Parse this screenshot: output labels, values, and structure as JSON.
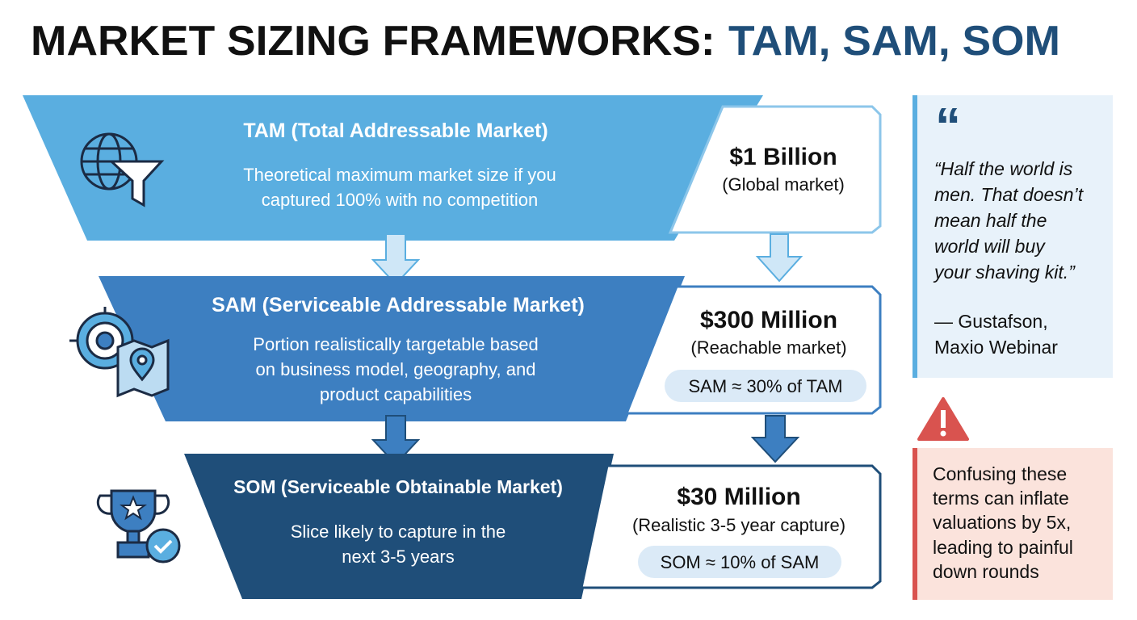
{
  "title": {
    "main": "MARKET SIZING FRAMEWORKS:",
    "highlight": "TAM, SAM, SOM"
  },
  "tiers": [
    {
      "name": "TAM (Total Addressable Market)",
      "description": [
        "Theoretical maximum market size if you",
        "captured 100% with no competition"
      ],
      "value": "$1 Billion",
      "scope": "(Global market)"
    },
    {
      "name": "SAM (Serviceable Addressable Market)",
      "description": [
        "Portion realistically targetable based",
        "on business model, geography, and",
        "product capabilities"
      ],
      "value": "$300 Million",
      "scope": "(Reachable market)",
      "ratio": "SAM ≈ 30% of TAM"
    },
    {
      "name": "SOM (Serviceable Obtainable Market)",
      "description": [
        "Slice likely to capture in the",
        "next 3-5 years"
      ],
      "value": "$30 Million",
      "scope": "(Realistic 3-5 year capture)",
      "ratio": "SOM ≈ 10% of SAM"
    }
  ],
  "quote": {
    "text": [
      "“Half the world is",
      "men. That doesn’t",
      "mean half the",
      "world will buy",
      "your shaving kit.”"
    ],
    "attribution": [
      "— Gustafson,",
      "Maxio Webinar"
    ]
  },
  "warning": {
    "text": [
      "Confusing these",
      "terms can inflate",
      "valuations by 5x,",
      "leading to painful",
      "down rounds"
    ]
  }
}
